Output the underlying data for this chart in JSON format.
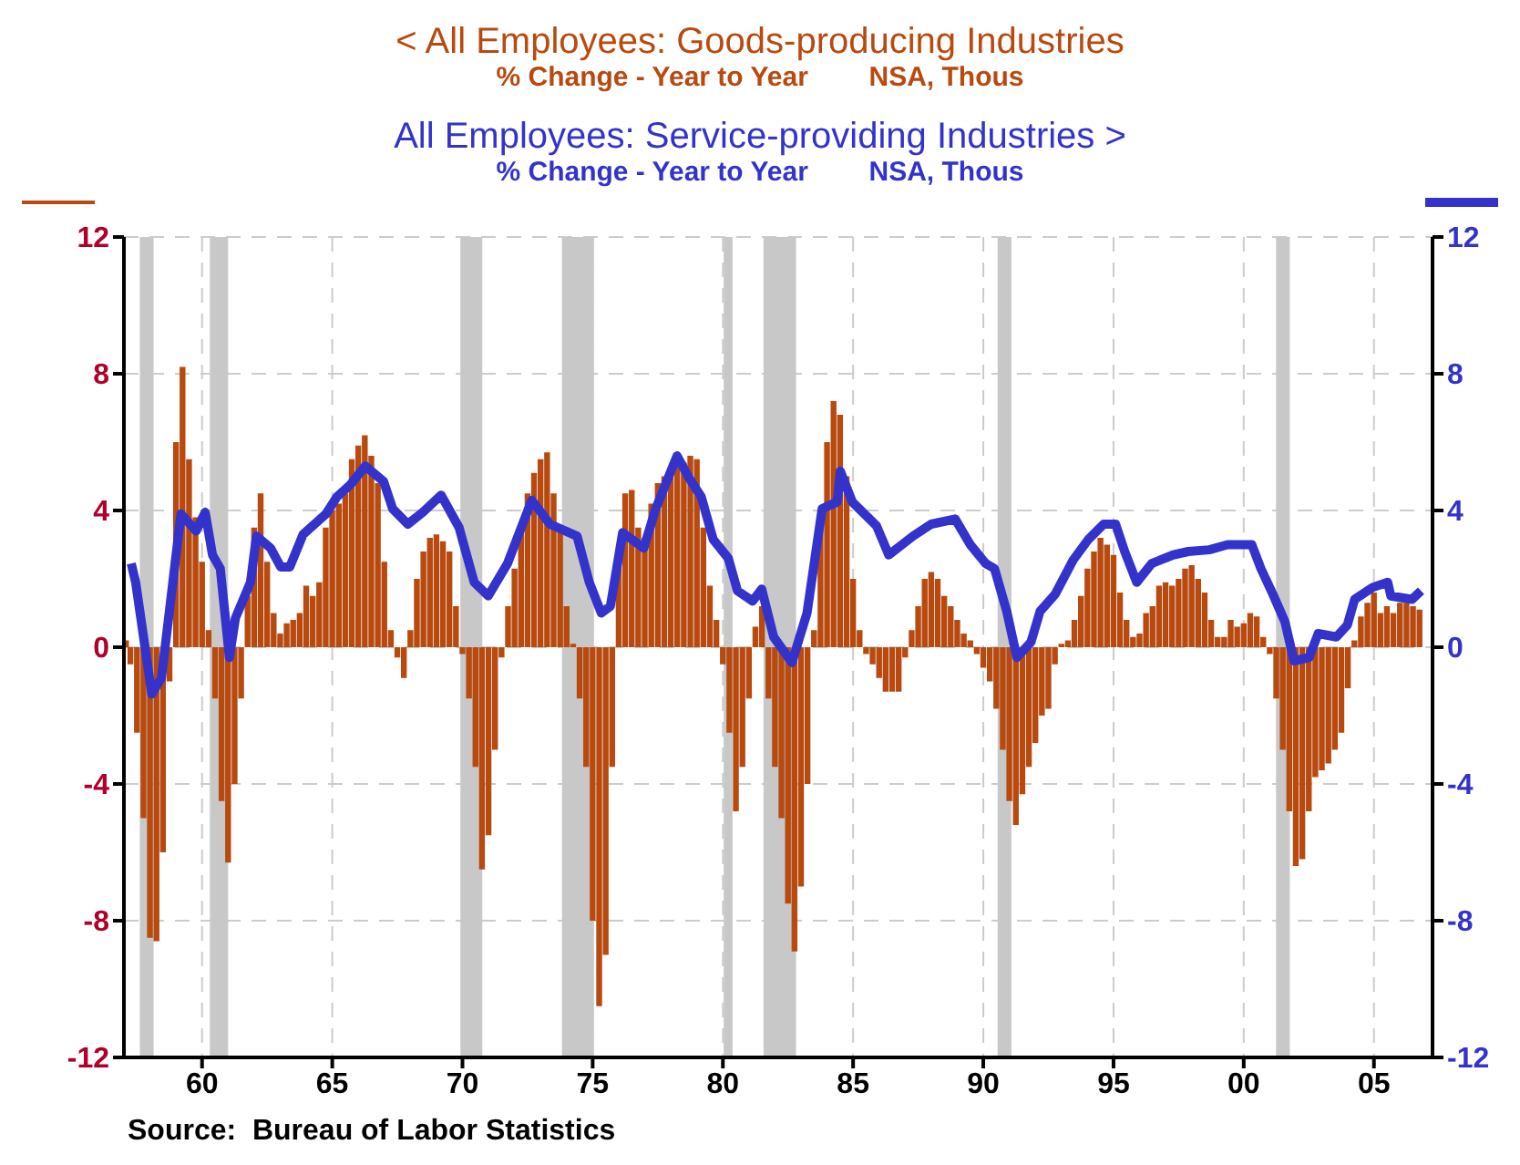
{
  "chart_data": {
    "type": "bar",
    "legend": "top",
    "grid": true,
    "xlim": [
      1957,
      2007.25
    ],
    "xticks": [
      {
        "value": 1960,
        "label": "60"
      },
      {
        "value": 1965,
        "label": "65"
      },
      {
        "value": 1970,
        "label": "70"
      },
      {
        "value": 1975,
        "label": "75"
      },
      {
        "value": 1980,
        "label": "80"
      },
      {
        "value": 1985,
        "label": "85"
      },
      {
        "value": 1990,
        "label": "90"
      },
      {
        "value": 1995,
        "label": "95"
      },
      {
        "value": 2000,
        "label": "00"
      },
      {
        "value": 2005,
        "label": "05"
      }
    ],
    "ylim": [
      -12,
      12
    ],
    "yticks": [
      -12,
      -8,
      -4,
      0,
      4,
      8,
      12
    ],
    "y2lim": [
      -12,
      12
    ],
    "y2ticks": [
      -12,
      -8,
      -4,
      0,
      4,
      8,
      12
    ],
    "series": [
      {
        "name": "<  All Employees: Goods-producing Industries",
        "color": "#b84a10",
        "x": [
          1957.08,
          1957.25,
          1957.5,
          1957.75,
          1958,
          1958.25,
          1958.5,
          1958.75,
          1959,
          1959.25,
          1959.5,
          1959.75,
          1960,
          1960.25,
          1960.5,
          1960.75,
          1961,
          1961.25,
          1961.5,
          1961.75,
          1962,
          1962.25,
          1962.5,
          1962.75,
          1963,
          1963.25,
          1963.5,
          1963.75,
          1964,
          1964.25,
          1964.5,
          1964.75,
          1965,
          1965.25,
          1965.5,
          1965.75,
          1966,
          1966.25,
          1966.5,
          1966.75,
          1967,
          1967.25,
          1967.5,
          1967.75,
          1968,
          1968.25,
          1968.5,
          1968.75,
          1969,
          1969.25,
          1969.5,
          1969.75,
          1970,
          1970.25,
          1970.5,
          1970.75,
          1971,
          1971.25,
          1971.5,
          1971.75,
          1972,
          1972.25,
          1972.5,
          1972.75,
          1973,
          1973.25,
          1973.5,
          1973.75,
          1974,
          1974.25,
          1974.5,
          1974.75,
          1975,
          1975.25,
          1975.5,
          1975.75,
          1976,
          1976.25,
          1976.5,
          1976.75,
          1977,
          1977.25,
          1977.5,
          1977.75,
          1978,
          1978.25,
          1978.5,
          1978.75,
          1979,
          1979.25,
          1979.5,
          1979.75,
          1980,
          1980.25,
          1980.5,
          1980.75,
          1981,
          1981.25,
          1981.5,
          1981.75,
          1982,
          1982.25,
          1982.5,
          1982.75,
          1983,
          1983.25,
          1983.5,
          1983.75,
          1984,
          1984.25,
          1984.5,
          1984.75,
          1985,
          1985.25,
          1985.5,
          1985.75,
          1986,
          1986.25,
          1986.5,
          1986.75,
          1987,
          1987.25,
          1987.5,
          1987.75,
          1988,
          1988.25,
          1988.5,
          1988.75,
          1989,
          1989.25,
          1989.5,
          1989.75,
          1990,
          1990.25,
          1990.5,
          1990.75,
          1991,
          1991.25,
          1991.5,
          1991.75,
          1992,
          1992.25,
          1992.5,
          1992.75,
          1993,
          1993.25,
          1993.5,
          1993.75,
          1994,
          1994.25,
          1994.5,
          1994.75,
          1995,
          1995.25,
          1995.5,
          1995.75,
          1996,
          1996.25,
          1996.5,
          1996.75,
          1997,
          1997.25,
          1997.5,
          1997.75,
          1998,
          1998.25,
          1998.5,
          1998.75,
          1999,
          1999.25,
          1999.5,
          1999.75,
          2000,
          2000.25,
          2000.5,
          2000.75,
          2001,
          2001.25,
          2001.5,
          2001.75,
          2002,
          2002.25,
          2002.5,
          2002.75,
          2003,
          2003.25,
          2003.5,
          2003.75,
          2004,
          2004.25,
          2004.5,
          2004.75,
          2005,
          2005.25,
          2005.5,
          2005.75,
          2006,
          2006.25,
          2006.5,
          2006.75
        ],
        "values": [
          0.2,
          -0.5,
          -2.5,
          -5,
          -8.5,
          -8.6,
          -6,
          -1,
          6,
          8.2,
          5.5,
          3.8,
          2.5,
          0.5,
          -1.5,
          -4.5,
          -6.3,
          -4,
          -1.5,
          1.5,
          3.5,
          4.5,
          2.5,
          1,
          0.4,
          0.7,
          0.8,
          1,
          1.8,
          1.5,
          1.9,
          3.5,
          4,
          4.2,
          4.5,
          5.5,
          5.9,
          6.2,
          5.6,
          4.8,
          2.5,
          0.5,
          -0.3,
          -0.9,
          0.5,
          2,
          2.8,
          3.2,
          3.3,
          3.1,
          2.8,
          1.2,
          -0.2,
          -1.5,
          -3.5,
          -6.5,
          -5.5,
          -3,
          -0.3,
          1.2,
          2.3,
          3.5,
          4.5,
          5.1,
          5.5,
          5.7,
          4.5,
          3.5,
          1.2,
          0.1,
          -1.5,
          -3.5,
          -8,
          -10.5,
          -9,
          -3.5,
          2.5,
          4.5,
          4.6,
          3.5,
          3.2,
          4.2,
          4.8,
          5,
          5.2,
          5.3,
          5.4,
          5.6,
          5.5,
          3.5,
          1.8,
          0.8,
          -0.5,
          -2.5,
          -4.8,
          -3.5,
          -1.5,
          0.6,
          1.2,
          -1.5,
          -3.5,
          -5,
          -7.5,
          -8.9,
          -7,
          -4,
          0.5,
          3.5,
          6,
          7.2,
          6.8,
          5,
          2,
          0.5,
          -0.2,
          -0.5,
          -0.9,
          -1.3,
          -1.3,
          -1.3,
          -0.3,
          0.5,
          1.2,
          2,
          2.2,
          2,
          1.5,
          1.2,
          0.8,
          0.4,
          0.2,
          -0.2,
          -0.6,
          -1,
          -1.8,
          -3,
          -4.5,
          -5.2,
          -4.3,
          -3.5,
          -2.8,
          -2,
          -1.8,
          -0.5,
          0.1,
          0.2,
          0.8,
          1.5,
          2.3,
          2.8,
          3.2,
          3,
          2.7,
          1.6,
          0.8,
          0.3,
          0.4,
          1,
          1.2,
          1.8,
          1.9,
          1.8,
          2,
          2.3,
          2.4,
          2,
          1.6,
          0.8,
          0.3,
          0.3,
          0.8,
          0.6,
          0.7,
          1,
          0.9,
          0.3,
          -0.2,
          -1.5,
          -3,
          -4.8,
          -6.4,
          -6.2,
          -4.8,
          -3.8,
          -3.6,
          -3.4,
          -3,
          -2.5,
          -1.2,
          0.2,
          0.9,
          1.3,
          1.6,
          1,
          1.2,
          1,
          1.3,
          1.3,
          1.2,
          1.1
        ]
      },
      {
        "name": "All Employees: Service-providing Industries  >",
        "type": "line",
        "axis": "y2",
        "color": "#3333cc",
        "x": [
          1957.28,
          1957.45,
          1958.07,
          1958.44,
          1959.19,
          1959.77,
          1960.12,
          1960.4,
          1960.7,
          1961.05,
          1961.28,
          1961.86,
          1962.09,
          1962.63,
          1963.02,
          1963.37,
          1963.88,
          1964.76,
          1965.18,
          1965.69,
          1966.27,
          1966.97,
          1967.32,
          1967.9,
          1968.48,
          1969.18,
          1969.87,
          1970.45,
          1970.99,
          1971.73,
          1972.66,
          1973.36,
          1974.4,
          1974.87,
          1975.33,
          1975.68,
          1976.15,
          1976.96,
          1977.42,
          1978.24,
          1978.7,
          1979.17,
          1979.63,
          1980.21,
          1980.56,
          1981.14,
          1981.49,
          1981.95,
          1982.65,
          1983.23,
          1983.81,
          1984.39,
          1984.51,
          1984.97,
          1985.9,
          1986.37,
          1987.3,
          1988,
          1988.92,
          1989.5,
          1990.09,
          1990.43,
          1990.9,
          1991.29,
          1991.83,
          1992.18,
          1992.76,
          1993.45,
          1994.03,
          1994.62,
          1995.08,
          1995.43,
          1995.89,
          1996.47,
          1997.29,
          1997.87,
          1998.68,
          1999.38,
          2000.31,
          2000.66,
          2001.12,
          2001.58,
          2001.93,
          2002.51,
          2002.86,
          2003.56,
          2003.98,
          2004.26,
          2004.95,
          2005.53,
          2005.65,
          2006.46,
          2006.81
        ],
        "values": [
          2.45,
          1.9,
          -1.37,
          -0.9,
          3.9,
          3.4,
          3.95,
          2.7,
          2.3,
          -0.3,
          0.85,
          1.9,
          3.25,
          2.9,
          2.35,
          2.35,
          3.3,
          3.9,
          4.4,
          4.75,
          5.3,
          4.85,
          4.05,
          3.6,
          3.95,
          4.45,
          3.5,
          1.9,
          1.5,
          2.45,
          4.3,
          3.6,
          3.25,
          1.9,
          1,
          1.2,
          3.35,
          2.9,
          4.05,
          5.6,
          4.95,
          4.4,
          3.15,
          2.6,
          1.65,
          1.35,
          1.7,
          0.3,
          -0.45,
          1,
          4.05,
          4.25,
          5.15,
          4.25,
          3.55,
          2.7,
          3.25,
          3.6,
          3.75,
          3,
          2.45,
          2.3,
          1.05,
          -0.3,
          0.15,
          1.05,
          1.55,
          2.55,
          3.15,
          3.6,
          3.6,
          2.8,
          1.9,
          2.45,
          2.7,
          2.8,
          2.85,
          3,
          3,
          2.3,
          1.55,
          0.75,
          -0.4,
          -0.3,
          0.4,
          0.3,
          0.65,
          1.4,
          1.75,
          1.9,
          1.5,
          1.4,
          1.65
        ]
      }
    ],
    "bands": [
      {
        "axis": "x",
        "from": 1957.61,
        "to": 1958.14,
        "color": "#c8c8c8"
      },
      {
        "axis": "x",
        "from": 1960.3,
        "to": 1961,
        "color": "#c8c8c8"
      },
      {
        "axis": "x",
        "from": 1969.92,
        "to": 1970.76,
        "color": "#c8c8c8"
      },
      {
        "axis": "x",
        "from": 1973.82,
        "to": 1975.05,
        "color": "#c8c8c8"
      },
      {
        "axis": "x",
        "from": 1980.03,
        "to": 1980.37,
        "color": "#c8c8c8"
      },
      {
        "axis": "x",
        "from": 1981.56,
        "to": 1982.81,
        "color": "#c8c8c8"
      },
      {
        "axis": "x",
        "from": 1990.55,
        "to": 1991.08,
        "color": "#c8c8c8"
      },
      {
        "axis": "x",
        "from": 2001.24,
        "to": 2001.77,
        "color": "#c8c8c8"
      }
    ],
    "annotations": [
      "% Change - Year to Year        NSA, Thous",
      "% Change - Year to Year        NSA, Thous",
      "Source:  Bureau of Labor Statistics"
    ]
  }
}
